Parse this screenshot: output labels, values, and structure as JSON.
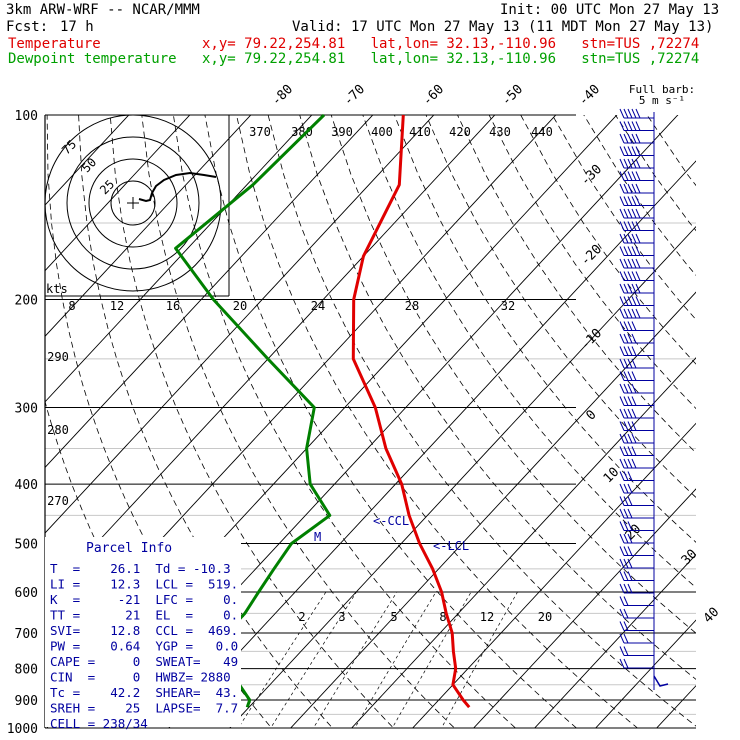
{
  "header": {
    "model": "3km ARW-WRF -- NCAR/MMM",
    "init": "Init: 00 UTC Mon 27 May 13",
    "fcst_label": "Fcst:",
    "fcst_value": "17 h",
    "valid": "Valid: 17 UTC Mon 27 May 13 (11 MDT Mon 27 May 13)",
    "temp_label": "Temperature",
    "temp_loc": "x,y= 79.22,254.81   lat,lon= 32.13,-110.96   stn=TUS ,72274",
    "dew_label": "Dewpoint temperature",
    "dew_loc": "x,y= 79.22,254.81   lat,lon= 32.13,-110.96   stn=TUS ,72274"
  },
  "colors": {
    "temperature": "#e00000",
    "dewpoint": "#008000",
    "grid": "#000000",
    "info": "#0000a0"
  },
  "wind_legend": {
    "line1": "Full barb:",
    "line2": "5 m s⁻¹"
  },
  "hodograph": {
    "unit": "kts",
    "ring_labels": [
      "25",
      "50",
      "75"
    ],
    "temp_labels": [
      "8",
      "12",
      "16",
      "20",
      "24",
      "28",
      "32"
    ]
  },
  "theta_labels": [
    "370",
    "380",
    "390",
    "400",
    "410",
    "420",
    "430",
    "440"
  ],
  "theta_low_labels": [
    "290",
    "280",
    "270"
  ],
  "mixing_ratio_labels": [
    "2",
    "3",
    "5",
    "8",
    "12",
    "20"
  ],
  "level_markers": {
    "ccl": "<-CCL",
    "lcl": "<-LCL",
    "m": "M"
  },
  "parcel_info": {
    "title": "Parcel Info",
    "rows": [
      "T  =    26.1  Td = -10.3",
      "LI =    12.3  LCL =  519.",
      "K  =     -21  LFC =    0.",
      "TT =      21  EL  =    0.",
      "SVI=    12.8  CCL =  469.",
      "PW =    0.64  YGP =   0.0",
      "CAPE =     0  SWEAT=   49",
      "CIN  =     0  HWBZ= 2880",
      "Tc =    42.2  SHEAR=  43.",
      "SREH =    25  LAPSE=  7.7",
      "CELL = 238/34"
    ]
  },
  "chart_data": {
    "type": "line",
    "title": "",
    "subtitle": "",
    "ylabel": "",
    "xlabel": "",
    "pressure_levels": [
      100,
      200,
      300,
      400,
      500,
      600,
      700,
      800,
      900,
      1000
    ],
    "isotherm_labels": [
      -80,
      -70,
      -60,
      -50,
      -40,
      -30,
      -20,
      -10,
      0,
      10,
      20,
      30,
      40
    ],
    "grid": true,
    "legend": "top-left",
    "series": [
      {
        "name": "Temperature",
        "points": [
          {
            "p": 100,
            "t": -75
          },
          {
            "p": 130,
            "t": -65
          },
          {
            "p": 170,
            "t": -60
          },
          {
            "p": 200,
            "t": -55
          },
          {
            "p": 250,
            "t": -46
          },
          {
            "p": 300,
            "t": -35
          },
          {
            "p": 350,
            "t": -27
          },
          {
            "p": 400,
            "t": -19
          },
          {
            "p": 450,
            "t": -13
          },
          {
            "p": 500,
            "t": -7
          },
          {
            "p": 550,
            "t": -1
          },
          {
            "p": 600,
            "t": 4
          },
          {
            "p": 650,
            "t": 8
          },
          {
            "p": 700,
            "t": 12
          },
          {
            "p": 750,
            "t": 15
          },
          {
            "p": 800,
            "t": 18
          },
          {
            "p": 850,
            "t": 20
          },
          {
            "p": 900,
            "t": 24
          },
          {
            "p": 925,
            "t": 26.1
          }
        ]
      },
      {
        "name": "Dewpoint temperature",
        "points": [
          {
            "p": 100,
            "t": -88
          },
          {
            "p": 130,
            "t": -89
          },
          {
            "p": 165,
            "t": -92
          },
          {
            "p": 200,
            "t": -78
          },
          {
            "p": 250,
            "t": -60
          },
          {
            "p": 300,
            "t": -45
          },
          {
            "p": 350,
            "t": -40
          },
          {
            "p": 400,
            "t": -34
          },
          {
            "p": 450,
            "t": -26
          },
          {
            "p": 500,
            "t": -28
          },
          {
            "p": 550,
            "t": -27
          },
          {
            "p": 600,
            "t": -26
          },
          {
            "p": 650,
            "t": -25
          },
          {
            "p": 700,
            "t": -25
          },
          {
            "p": 750,
            "t": -22
          },
          {
            "p": 800,
            "t": -19
          },
          {
            "p": 850,
            "t": -15
          },
          {
            "p": 900,
            "t": -11
          },
          {
            "p": 925,
            "t": -10.3
          }
        ]
      }
    ]
  }
}
